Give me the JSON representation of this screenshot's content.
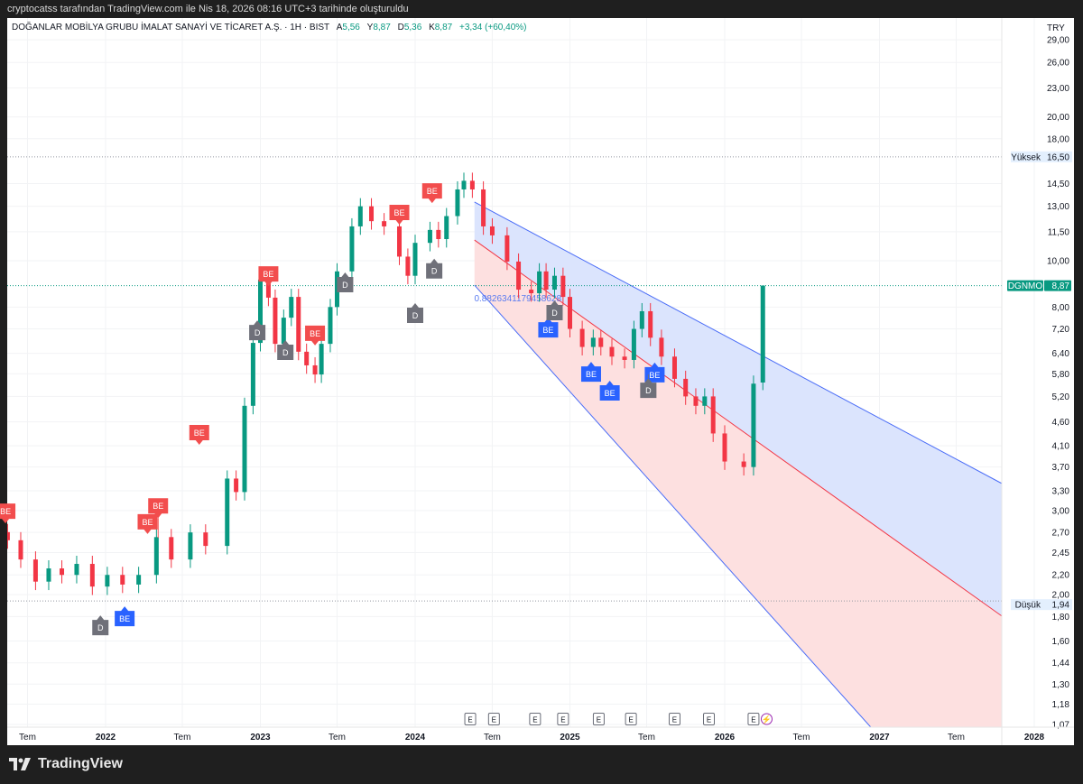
{
  "credit": "cryptocatss tarafından TradingView.com ile Nis 18, 2026 08:16 UTC+3 tarihinde oluşturuldu",
  "legend": {
    "symbol_title": "DOĞANLAR MOBİLYA GRUBU İMALAT SANAYİ VE TİCARET A.Ş. · 1H · BIST",
    "open_label": "A",
    "open": "5,56",
    "high_label": "Y",
    "high": "8,87",
    "low_label": "D",
    "low": "5,36",
    "close_label": "K",
    "close": "8,87",
    "change": "+3,34 (+60,40%)"
  },
  "currency": "TRY",
  "brand": "TradingView",
  "colors": {
    "up": "#089981",
    "down": "#f23645",
    "channel_line": "#4a6cf7",
    "mid_line": "#f23645",
    "upper_fill": "#dbe4fd",
    "lower_fill": "#fde0e0",
    "be_red": "#f24d4d",
    "be_blue": "#2962ff",
    "d_gray": "#6f7079",
    "last_price": "#089981"
  },
  "price_axis": {
    "scale": "log",
    "ticks": [
      "29,00",
      "26,00",
      "23,00",
      "20,00",
      "18,00",
      "14,50",
      "13,00",
      "11,50",
      "10,00",
      "8,00",
      "7,20",
      "6,40",
      "5,80",
      "5,20",
      "4,60",
      "4,10",
      "3,70",
      "3,30",
      "3,00",
      "2,70",
      "2,45",
      "2,20",
      "2,00",
      "1,80",
      "1,60",
      "1,44",
      "1,30",
      "1,18",
      "1,07"
    ],
    "high_line": {
      "label": "Yüksek",
      "value": "16,50"
    },
    "low_line": {
      "label": "Düşük",
      "value": "1,94"
    },
    "last_price": {
      "symbol": "DGNMO",
      "value": "8,87"
    }
  },
  "time_axis": {
    "ticks": [
      {
        "label": "Tem",
        "date": "2021-07-01",
        "bold": false
      },
      {
        "label": "2022",
        "date": "2022-01-01",
        "bold": true
      },
      {
        "label": "Tem",
        "date": "2022-07-01",
        "bold": false
      },
      {
        "label": "2023",
        "date": "2023-01-01",
        "bold": true
      },
      {
        "label": "Tem",
        "date": "2023-07-01",
        "bold": false
      },
      {
        "label": "2024",
        "date": "2024-01-01",
        "bold": true
      },
      {
        "label": "Tem",
        "date": "2024-07-01",
        "bold": false
      },
      {
        "label": "2025",
        "date": "2025-01-01",
        "bold": true
      },
      {
        "label": "Tem",
        "date": "2025-07-01",
        "bold": false
      },
      {
        "label": "2026",
        "date": "2026-01-01",
        "bold": true
      },
      {
        "label": "Tem",
        "date": "2026-07-01",
        "bold": false
      },
      {
        "label": "2027",
        "date": "2027-01-01",
        "bold": true
      },
      {
        "label": "Tem",
        "date": "2027-07-01",
        "bold": false
      },
      {
        "label": "2028",
        "date": "2028-01-01",
        "bold": true
      }
    ]
  },
  "chart_data": {
    "type": "candlestick",
    "symbol": "DGNMO",
    "yscale": "log",
    "ylim": [
      1.07,
      29
    ],
    "xlim": [
      "2021-05-01",
      "2028-01-01"
    ],
    "grid": true,
    "candles": [
      [
        "2021-05-15",
        2.6
      ],
      [
        "2021-06-15",
        2.37
      ],
      [
        "2021-07-20",
        2.13
      ],
      [
        "2021-08-20",
        2.27
      ],
      [
        "2021-09-20",
        2.2
      ],
      [
        "2021-10-25",
        2.32
      ],
      [
        "2021-12-01",
        2.08
      ],
      [
        "2022-01-05",
        2.2
      ],
      [
        "2022-02-10",
        2.1
      ],
      [
        "2022-03-20",
        2.2
      ],
      [
        "2022-05-01",
        2.64
      ],
      [
        "2022-06-05",
        2.37
      ],
      [
        "2022-07-20",
        2.7
      ],
      [
        "2022-08-25",
        2.53
      ],
      [
        "2022-10-15",
        3.5
      ],
      [
        "2022-11-05",
        3.28
      ],
      [
        "2022-11-25",
        4.97
      ],
      [
        "2022-12-15",
        6.73
      ],
      [
        "2023-01-01",
        9.13
      ],
      [
        "2023-01-20",
        8.37
      ],
      [
        "2023-02-05",
        6.7
      ],
      [
        "2023-02-25",
        7.6
      ],
      [
        "2023-03-15",
        8.4
      ],
      [
        "2023-04-01",
        6.45
      ],
      [
        "2023-04-20",
        6.04
      ],
      [
        "2023-05-10",
        5.78
      ],
      [
        "2023-05-25",
        6.7
      ],
      [
        "2023-06-15",
        8.0
      ],
      [
        "2023-07-01",
        9.5
      ],
      [
        "2023-08-05",
        11.8
      ],
      [
        "2023-08-25",
        13.0
      ],
      [
        "2023-09-20",
        12.1
      ],
      [
        "2023-10-20",
        11.8
      ],
      [
        "2023-11-25",
        10.2
      ],
      [
        "2023-12-15",
        9.3
      ],
      [
        "2024-01-01",
        10.9
      ],
      [
        "2024-02-05",
        11.6
      ],
      [
        "2024-02-25",
        11.1
      ],
      [
        "2024-03-15",
        12.4
      ],
      [
        "2024-04-10",
        14.1
      ],
      [
        "2024-04-25",
        14.7
      ],
      [
        "2024-05-15",
        14.1
      ],
      [
        "2024-06-10",
        11.8
      ],
      [
        "2024-07-01",
        11.3
      ],
      [
        "2024-08-05",
        9.96
      ],
      [
        "2024-09-01",
        8.7
      ],
      [
        "2024-10-01",
        8.55
      ],
      [
        "2024-10-20",
        9.5
      ],
      [
        "2024-11-05",
        8.7
      ],
      [
        "2024-11-25",
        9.3
      ],
      [
        "2024-12-15",
        8.4
      ],
      [
        "2025-01-01",
        7.2
      ],
      [
        "2025-01-30",
        6.6
      ],
      [
        "2025-02-25",
        6.9
      ],
      [
        "2025-03-15",
        6.6
      ],
      [
        "2025-04-10",
        6.3
      ],
      [
        "2025-05-10",
        6.2
      ],
      [
        "2025-06-01",
        7.2
      ],
      [
        "2025-06-20",
        7.84
      ],
      [
        "2025-07-10",
        6.9
      ],
      [
        "2025-08-05",
        6.3
      ],
      [
        "2025-09-05",
        5.66
      ],
      [
        "2025-10-01",
        5.2
      ],
      [
        "2025-10-25",
        4.97
      ],
      [
        "2025-11-15",
        5.2
      ],
      [
        "2025-12-05",
        4.35
      ],
      [
        "2026-01-01",
        3.8
      ],
      [
        "2026-02-15",
        3.7
      ],
      [
        "2026-03-10",
        5.53
      ]
    ],
    "last_bar": {
      "date": "2026-04-01",
      "open": 5.56,
      "high": 8.87,
      "low": 5.36,
      "close": 8.87
    },
    "all_time_high": 16.5,
    "all_time_low": 1.94,
    "channel": {
      "upper": [
        [
          "2024-05-20",
          13.27
        ],
        [
          "2028-01-20",
          3.08
        ]
      ],
      "middle": [
        [
          "2024-05-20",
          11.05
        ],
        [
          "2028-01-20",
          1.57
        ]
      ],
      "lower": [
        [
          "2024-05-20",
          8.89
        ],
        [
          "2028-01-20",
          0.42
        ]
      ],
      "label": "0.8826341179458628"
    },
    "markers": [
      {
        "date": "2021-05-10",
        "label": "BE",
        "kind": "sell",
        "price": 2.82
      },
      {
        "date": "2022-04-10",
        "label": "BE",
        "kind": "sell",
        "price": 2.68
      },
      {
        "date": "2022-05-05",
        "label": "BE",
        "kind": "sell",
        "price": 2.63
      },
      {
        "date": "2022-08-10",
        "label": "BE",
        "kind": "sell",
        "price": 4.12
      },
      {
        "date": "2023-01-20",
        "label": "BE",
        "kind": "sell",
        "price": 8.85
      },
      {
        "date": "2023-05-10",
        "label": "BE",
        "kind": "sell",
        "price": 6.65
      },
      {
        "date": "2023-11-25",
        "label": "BE",
        "kind": "sell",
        "price": 11.9
      },
      {
        "date": "2024-02-10",
        "label": "BE",
        "kind": "sell",
        "price": 13.2
      },
      {
        "date": "2022-02-15",
        "label": "BE",
        "kind": "buy",
        "price": 1.89
      },
      {
        "date": "2024-11-10",
        "label": "BE",
        "kind": "buy",
        "price": 7.6
      },
      {
        "date": "2025-02-20",
        "label": "BE",
        "kind": "buy",
        "price": 6.14
      },
      {
        "date": "2025-04-05",
        "label": "BE",
        "kind": "buy",
        "price": 5.61
      },
      {
        "date": "2025-07-20",
        "label": "BE",
        "kind": "buy",
        "price": 6.12
      },
      {
        "date": "2021-12-20",
        "label": "D",
        "kind": "d",
        "price": 1.81
      },
      {
        "date": "2022-12-25",
        "label": "D",
        "kind": "d",
        "price": 7.5
      },
      {
        "date": "2023-03-01",
        "label": "D",
        "kind": "d",
        "price": 6.82
      },
      {
        "date": "2023-07-20",
        "label": "D",
        "kind": "d",
        "price": 9.45
      },
      {
        "date": "2024-01-01",
        "label": "D",
        "kind": "d",
        "price": 8.15
      },
      {
        "date": "2024-02-15",
        "label": "D",
        "kind": "d",
        "price": 10.1
      },
      {
        "date": "2024-11-25",
        "label": "D",
        "kind": "d",
        "price": 8.26
      },
      {
        "date": "2025-07-05",
        "label": "D",
        "kind": "d",
        "price": 5.78
      }
    ],
    "events": [
      {
        "date": "2024-05-10",
        "label": "E"
      },
      {
        "date": "2024-07-05",
        "label": "E"
      },
      {
        "date": "2024-10-10",
        "label": "E"
      },
      {
        "date": "2024-12-15",
        "label": "E"
      },
      {
        "date": "2025-03-10",
        "label": "E"
      },
      {
        "date": "2025-05-25",
        "label": "E"
      },
      {
        "date": "2025-09-05",
        "label": "E"
      },
      {
        "date": "2025-11-25",
        "label": "E"
      },
      {
        "date": "2026-03-10",
        "label": "E"
      },
      {
        "date": "2026-04-10",
        "label": "⚡",
        "kind": "split"
      }
    ]
  }
}
